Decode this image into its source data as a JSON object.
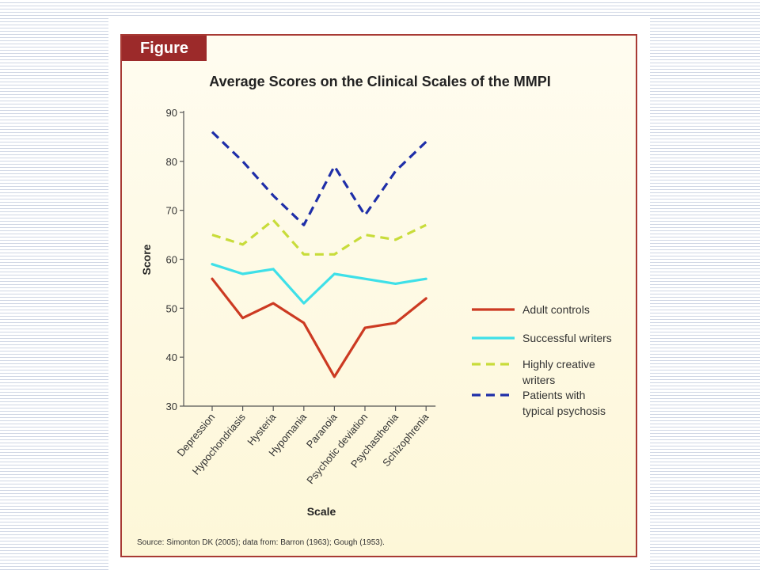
{
  "figure": {
    "tab_label": "Figure",
    "source": "Source: Simonton DK (2005); data from: Barron (1963); Gough (1953)."
  },
  "chart_data": {
    "type": "line",
    "title": "Average Scores on the Clinical Scales of the MMPI",
    "xlabel": "Scale",
    "ylabel": "Score",
    "ylim": [
      30,
      90
    ],
    "yticks": [
      30,
      40,
      50,
      60,
      70,
      80,
      90
    ],
    "grid": false,
    "legend_position": "right",
    "categories": [
      "Depression",
      "Hypochondriasis",
      "Hysteria",
      "Hypomania",
      "Paranoia",
      "Psychotic deviation",
      "Psychasthenia",
      "Schizophrenia"
    ],
    "series": [
      {
        "name": "Adult controls",
        "legend_lines": [
          "Adult controls"
        ],
        "color": "#cc3a22",
        "dash": "solid",
        "values": [
          56,
          48,
          51,
          47,
          36,
          46,
          47,
          52
        ]
      },
      {
        "name": "Successful writers",
        "legend_lines": [
          "Successful writers"
        ],
        "color": "#3ee0e8",
        "dash": "solid",
        "values": [
          59,
          57,
          58,
          51,
          57,
          56,
          55,
          56
        ]
      },
      {
        "name": "Highly creative writers",
        "legend_lines": [
          "Highly creative",
          "writers"
        ],
        "color": "#c8dc3a",
        "dash": "dashed",
        "values": [
          65,
          63,
          68,
          61,
          61,
          65,
          64,
          67
        ]
      },
      {
        "name": "Patients with typical psychosis",
        "legend_lines": [
          "Patients with",
          "typical psychosis"
        ],
        "color": "#1e2ea8",
        "dash": "dashed",
        "values": [
          86,
          80,
          73,
          67,
          79,
          69,
          78,
          84
        ]
      }
    ]
  }
}
